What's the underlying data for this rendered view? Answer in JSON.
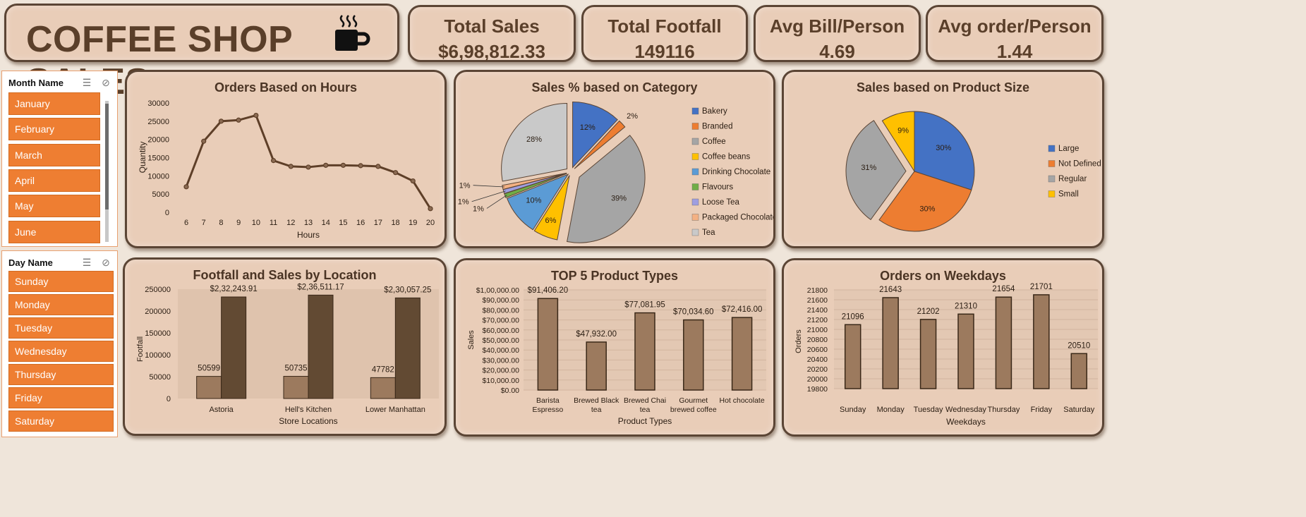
{
  "header": {
    "title": "COFFEE SHOP SALES",
    "icon": "coffee-cup-icon"
  },
  "kpis": [
    {
      "title": "Total Sales",
      "value": "$6,98,812.33"
    },
    {
      "title": "Total Footfall",
      "value": "149116"
    },
    {
      "title": "Avg Bill/Person",
      "value": "4.69"
    },
    {
      "title": "Avg order/Person",
      "value": "1.44"
    }
  ],
  "slicers": {
    "month": {
      "title": "Month Name",
      "items": [
        "January",
        "February",
        "March",
        "April",
        "May",
        "June"
      ]
    },
    "day": {
      "title": "Day Name",
      "items": [
        "Sunday",
        "Monday",
        "Tuesday",
        "Wednesday",
        "Thursday",
        "Friday",
        "Saturday"
      ]
    }
  },
  "colors": {
    "card_bg": "#e9cdb8",
    "card_border": "#5b4535",
    "slicer_orange": "#ee7e32",
    "bar_light": "#9c7a5e",
    "bar_dark": "#624a33",
    "line": "#5e3f28"
  },
  "chart_data": [
    {
      "id": "orders_hours",
      "type": "line",
      "title": "Orders Based on Hours",
      "xlabel": "Hours",
      "ylabel": "Quantity",
      "x": [
        6,
        7,
        8,
        9,
        10,
        11,
        12,
        13,
        14,
        15,
        16,
        17,
        18,
        19,
        20
      ],
      "values": [
        7000,
        19500,
        25000,
        25300,
        26600,
        14200,
        12600,
        12400,
        12900,
        12900,
        12800,
        12600,
        10900,
        8600,
        1000
      ],
      "ylim": [
        0,
        30000
      ],
      "yticks": [
        "0",
        "5000",
        "10000",
        "15000",
        "20000",
        "25000",
        "30000"
      ],
      "grid": false
    },
    {
      "id": "category_pie",
      "type": "pie",
      "title": "Sales % based on Category",
      "legend_position": "right",
      "slices": [
        {
          "label": "Bakery",
          "value": 12,
          "display": "12%",
          "color": "#4472c4"
        },
        {
          "label": "Branded",
          "value": 2,
          "display": "2%",
          "color": "#ed7d31"
        },
        {
          "label": "Coffee",
          "value": 39,
          "display": "39%",
          "color": "#a5a5a5"
        },
        {
          "label": "Coffee beans",
          "value": 6,
          "display": "6%",
          "color": "#ffc000"
        },
        {
          "label": "Drinking Chocolate",
          "value": 10,
          "display": "10%",
          "color": "#5b9bd5"
        },
        {
          "label": "Flavours",
          "value": 1,
          "display": "1%",
          "color": "#70ad47"
        },
        {
          "label": "Loose Tea",
          "value": 1,
          "display": "1%",
          "color": "#9e9ee0"
        },
        {
          "label": "Packaged Chocolate",
          "value": 1,
          "display": "1%",
          "color": "#f4b183"
        },
        {
          "label": "Tea",
          "value": 28,
          "display": "28%",
          "color": "#c9c9c9"
        }
      ]
    },
    {
      "id": "size_pie",
      "type": "pie",
      "title": "Sales based on Product Size",
      "legend_position": "right",
      "slices": [
        {
          "label": "Large",
          "value": 30,
          "display": "30%",
          "color": "#4472c4"
        },
        {
          "label": "Not Defined",
          "value": 30,
          "display": "30%",
          "color": "#ed7d31"
        },
        {
          "label": "Regular",
          "value": 31,
          "display": "31%",
          "color": "#a5a5a5"
        },
        {
          "label": "Small",
          "value": 9,
          "display": "9%",
          "color": "#ffc000"
        }
      ]
    },
    {
      "id": "location",
      "type": "bar",
      "title": "Footfall and Sales by Location",
      "xlabel": "Store Locations",
      "ylabel": "Footfall",
      "categories": [
        "Astoria",
        "Hell's Kitchen",
        "Lower Manhattan"
      ],
      "series": [
        {
          "values": [
            50599,
            50735,
            47782
          ],
          "labels": [
            "50599",
            "50735",
            "47782"
          ],
          "color": "#9c7a5e"
        },
        {
          "values": [
            232243.91,
            236511.17,
            230057.25
          ],
          "labels": [
            "$2,32,243.91",
            "$2,36,511.17",
            "$2,30,057.25"
          ],
          "color": "#624a33"
        }
      ],
      "ylim": [
        0,
        250000
      ],
      "yticks": [
        "0",
        "50000",
        "100000",
        "150000",
        "200000",
        "250000"
      ]
    },
    {
      "id": "top5",
      "type": "bar",
      "title": "TOP 5 Product Types",
      "xlabel": "Product Types",
      "ylabel": "Sales",
      "categories": [
        [
          "Barista",
          "Espresso"
        ],
        [
          "Brewed Black",
          "tea"
        ],
        [
          "Brewed Chai",
          "tea"
        ],
        [
          "Gourmet",
          "brewed coffee"
        ],
        [
          "Hot chocolate"
        ]
      ],
      "values": [
        91406.2,
        47932.0,
        77081.95,
        70034.6,
        72416.0
      ],
      "labels": [
        "$91,406.20",
        "$47,932.00",
        "$77,081.95",
        "$70,034.60",
        "$72,416.00"
      ],
      "ylim": [
        0,
        100000
      ],
      "yticks": [
        "$0.00",
        "$10,000.00",
        "$20,000.00",
        "$30,000.00",
        "$40,000.00",
        "$50,000.00",
        "$60,000.00",
        "$70,000.00",
        "$80,000.00",
        "$90,000.00",
        "$1,00,000.00"
      ],
      "grid": true
    },
    {
      "id": "weekdays",
      "type": "bar",
      "title": "Orders on Weekdays",
      "xlabel": "Weekdays",
      "ylabel": "Orders",
      "categories": [
        "Sunday",
        "Monday",
        "Tuesday",
        "Wednesday",
        "Thursday",
        "Friday",
        "Saturday"
      ],
      "values": [
        21096,
        21643,
        21202,
        21310,
        21654,
        21701,
        20510
      ],
      "labels": [
        "21096",
        "21643",
        "21202",
        "21310",
        "21654",
        "21701",
        "20510"
      ],
      "ylim": [
        19800,
        21800
      ],
      "yticks": [
        "19800",
        "20000",
        "20200",
        "20400",
        "20600",
        "20800",
        "21000",
        "21200",
        "21400",
        "21600",
        "21800"
      ],
      "grid": true
    }
  ]
}
